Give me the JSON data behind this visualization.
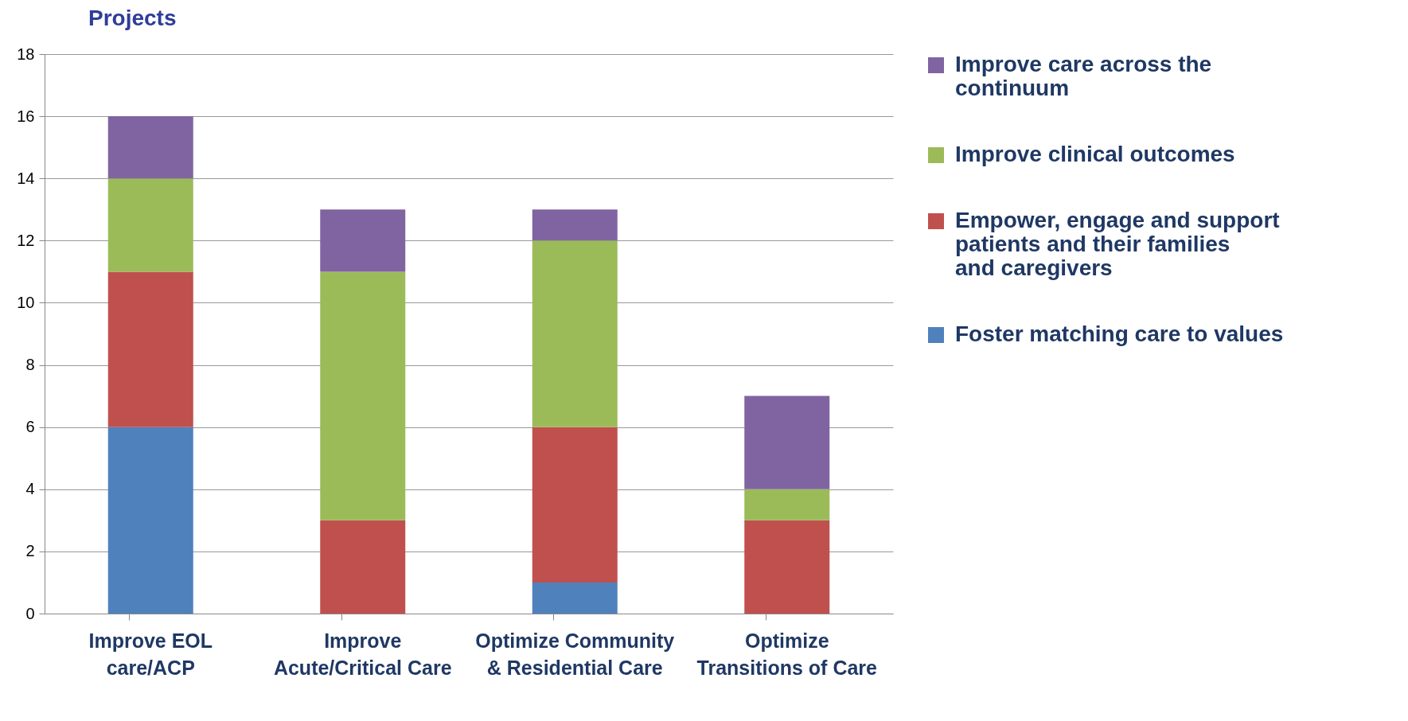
{
  "chart_data": {
    "type": "bar",
    "stacked": true,
    "ylabel": "Projects",
    "categories": [
      "Improve EOL care/ACP",
      "Improve Acute/Critical Care",
      "Optimize Community & Residential Care",
      "Optimize Transitions of Care"
    ],
    "series": [
      {
        "name": "Foster matching care to values",
        "color": "#4f81bd",
        "values": [
          6,
          0,
          1,
          0
        ]
      },
      {
        "name": "Empower, engage and support patients and their families and caregivers",
        "color": "#c0504d",
        "values": [
          5,
          3,
          5,
          3
        ]
      },
      {
        "name": "Improve clinical outcomes",
        "color": "#9bbb59",
        "values": [
          3,
          8,
          6,
          1
        ]
      },
      {
        "name": "Improve care across the continuum",
        "color": "#8064a2",
        "values": [
          2,
          2,
          1,
          3
        ]
      }
    ],
    "ylim": [
      0,
      18
    ],
    "yticks": [
      0,
      2,
      4,
      6,
      8,
      10,
      12,
      14,
      16,
      18
    ],
    "grid": "y",
    "legend": "right"
  }
}
